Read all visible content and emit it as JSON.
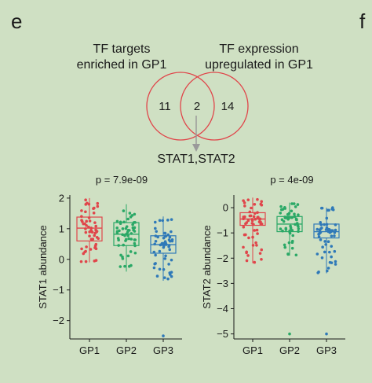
{
  "panels": {
    "e": "e",
    "f": "f"
  },
  "venn": {
    "left_label_line1": "TF targets",
    "left_label_line2": "enriched in GP1",
    "right_label_line1": "TF expression",
    "right_label_line2": "upregulated in GP1",
    "left_only": "11",
    "overlap": "2",
    "right_only": "14",
    "result": "STAT1,STAT2",
    "circle_color": "#e0454a",
    "arrow_color": "#9a9a9a"
  },
  "chart_data": [
    {
      "type": "box",
      "title": "p = 7.9e-09",
      "ylabel": "STAT1 abundance",
      "xlabel": "",
      "categories": [
        "GP1",
        "GP2",
        "GP3"
      ],
      "colors": [
        "#e0454a",
        "#2aa866",
        "#2f79b8"
      ],
      "ylim": [
        -2.6,
        2.1
      ],
      "yticks": [
        2,
        1,
        0,
        -1,
        -2
      ],
      "ytick_labels": [
        "2",
        "1",
        "0",
        "−1",
        "−2"
      ],
      "boxes": [
        {
          "q1": 0.6,
          "median": 1.02,
          "q3": 1.38,
          "whisker_low": -0.1,
          "whisker_high": 2.0
        },
        {
          "q1": 0.45,
          "median": 0.82,
          "q3": 1.2,
          "whisker_low": -0.4,
          "whisker_high": 1.8
        },
        {
          "q1": 0.2,
          "median": 0.48,
          "q3": 0.77,
          "whisker_low": -0.7,
          "whisker_high": 1.4
        }
      ],
      "outliers": [
        [],
        [],
        [
          -2.5
        ]
      ],
      "points_per_group": 55,
      "grid": false
    },
    {
      "type": "box",
      "title": "p = 4e-09",
      "ylabel": "STAT2 abundance",
      "xlabel": "",
      "categories": [
        "GP1",
        "GP2",
        "GP3"
      ],
      "colors": [
        "#e0454a",
        "#2aa866",
        "#2f79b8"
      ],
      "ylim": [
        -5.2,
        0.5
      ],
      "yticks": [
        0,
        -1,
        -2,
        -3,
        -4,
        -5
      ],
      "ytick_labels": [
        "0",
        "−1",
        "−2",
        "−3",
        "−4",
        "−5"
      ],
      "boxes": [
        {
          "q1": -0.7,
          "median": -0.45,
          "q3": -0.2,
          "whisker_low": -2.2,
          "whisker_high": 0.4
        },
        {
          "q1": -0.95,
          "median": -0.65,
          "q3": -0.35,
          "whisker_low": -1.9,
          "whisker_high": 0.2
        },
        {
          "q1": -1.2,
          "median": -0.95,
          "q3": -0.65,
          "whisker_low": -2.6,
          "whisker_high": 0.0
        }
      ],
      "outliers": [
        [],
        [
          -5.0
        ],
        [
          -5.0
        ]
      ],
      "points_per_group": 55,
      "grid": false
    }
  ]
}
